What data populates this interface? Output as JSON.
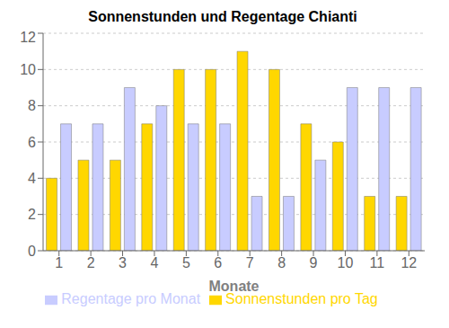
{
  "chart_data": {
    "type": "bar",
    "title": "Sonnenstunden und Regentage Chianti",
    "xlabel": "Monate",
    "categories": [
      "1",
      "2",
      "3",
      "4",
      "5",
      "6",
      "7",
      "8",
      "9",
      "10",
      "11",
      "12"
    ],
    "series": [
      {
        "name": "Sonnenstunden pro Tag",
        "color": "#FFD700",
        "values": [
          4,
          5,
          5,
          7,
          10,
          10,
          11,
          10,
          7,
          6,
          3,
          3
        ]
      },
      {
        "name": "Regentage pro Monat",
        "color": "#C8CCFF",
        "values": [
          7,
          7,
          9,
          8,
          7,
          7,
          3,
          3,
          5,
          9,
          9,
          9
        ]
      }
    ],
    "ylim": [
      0,
      12
    ],
    "yticks": [
      0,
      2,
      4,
      6,
      8,
      10,
      12
    ],
    "grid": true,
    "legend": "bottom"
  }
}
